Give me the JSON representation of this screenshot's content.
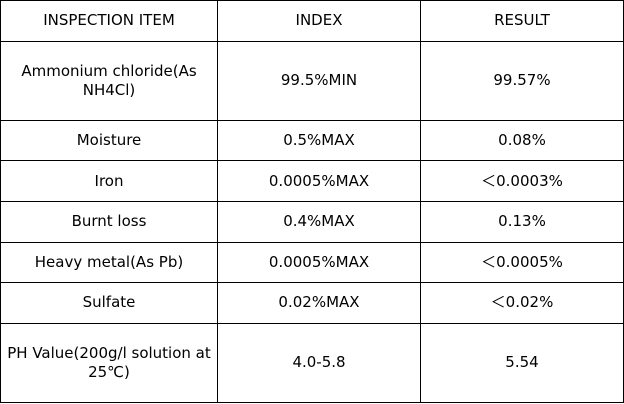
{
  "table": {
    "header": [
      "INSPECTION ITEM",
      "INDEX",
      "RESULT"
    ],
    "rows": [
      [
        "Ammonium chloride(As NH4Cl)",
        "99.5%MIN",
        "99.57%"
      ],
      [
        "Moisture",
        "0.5%MAX",
        "0.08%"
      ],
      [
        "Iron",
        "0.0005%MAX",
        "＜0.0003%"
      ],
      [
        "Burnt loss",
        "0.4%MAX",
        "0.13%"
      ],
      [
        "Heavy metal(As Pb)",
        "0.0005%MAX",
        "＜0.0005%"
      ],
      [
        "Sulfate",
        "0.02%MAX",
        "＜0.02%"
      ],
      [
        "PH Value(200g/l solution at 25℃)",
        "4.0-5.8",
        "5.54"
      ]
    ]
  }
}
